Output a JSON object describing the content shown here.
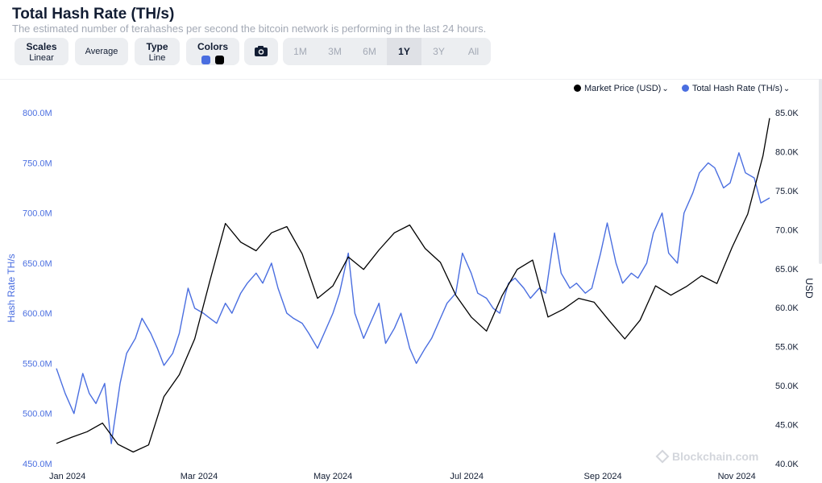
{
  "header": {
    "title": "Total Hash Rate (TH/s)",
    "subtitle": "The estimated number of terahashes per second the bitcoin network is performing in the last 24 hours."
  },
  "toolbar": {
    "scales_label": "Scales",
    "scales_value": "Linear",
    "average_label": "Average",
    "type_label": "Type",
    "type_value": "Line",
    "colors_label": "Colors",
    "color_hashrate": "#4a6ee0",
    "color_price": "#000000",
    "camera_icon": "camera-icon",
    "ranges": [
      "1M",
      "3M",
      "6M",
      "1Y",
      "3Y",
      "All"
    ],
    "active_range": "1Y"
  },
  "legend": {
    "price": "Market Price (USD)",
    "hashrate": "Total Hash Rate (TH/s)"
  },
  "watermark": "Blockchain.com",
  "chart_data": {
    "type": "line",
    "xlabel": "",
    "x_ticks": [
      "Jan 2024",
      "Mar 2024",
      "May 2024",
      "Jul 2024",
      "Sep 2024",
      "Nov 2024"
    ],
    "left_axis": {
      "label": "Hash Rate TH/s",
      "range": [
        450000000,
        800000000
      ],
      "ticks": [
        "450.0M",
        "500.0M",
        "550.0M",
        "600.0M",
        "650.0M",
        "700.0M",
        "750.0M",
        "800.0M"
      ],
      "color": "#4a6ee0"
    },
    "right_axis": {
      "label": "USD",
      "range": [
        40000,
        85000
      ],
      "ticks": [
        "40.0K",
        "45.0K",
        "50.0K",
        "55.0K",
        "60.0K",
        "65.0K",
        "70.0K",
        "75.0K",
        "80.0K",
        "85.0K"
      ],
      "color": "#121d33"
    },
    "legend_position": "top-right",
    "grid": false,
    "series": [
      {
        "name": "Total Hash Rate (TH/s)",
        "axis": "left",
        "color": "#4a6ee0",
        "x": [
          "2023-12-27",
          "2023-12-31",
          "2024-01-04",
          "2024-01-08",
          "2024-01-11",
          "2024-01-14",
          "2024-01-18",
          "2024-01-21",
          "2024-01-25",
          "2024-01-28",
          "2024-02-01",
          "2024-02-04",
          "2024-02-08",
          "2024-02-11",
          "2024-02-14",
          "2024-02-18",
          "2024-02-21",
          "2024-02-25",
          "2024-02-28",
          "2024-03-03",
          "2024-03-06",
          "2024-03-09",
          "2024-03-13",
          "2024-03-16",
          "2024-03-20",
          "2024-03-23",
          "2024-03-27",
          "2024-03-30",
          "2024-04-03",
          "2024-04-06",
          "2024-04-10",
          "2024-04-13",
          "2024-04-17",
          "2024-04-20",
          "2024-04-24",
          "2024-04-27",
          "2024-05-01",
          "2024-05-04",
          "2024-05-08",
          "2024-05-11",
          "2024-05-15",
          "2024-05-18",
          "2024-05-22",
          "2024-05-25",
          "2024-05-29",
          "2024-06-01",
          "2024-06-05",
          "2024-06-08",
          "2024-06-12",
          "2024-06-15",
          "2024-06-19",
          "2024-06-22",
          "2024-06-26",
          "2024-06-29",
          "2024-07-03",
          "2024-07-06",
          "2024-07-10",
          "2024-07-13",
          "2024-07-16",
          "2024-07-20",
          "2024-07-23",
          "2024-07-27",
          "2024-07-30",
          "2024-08-03",
          "2024-08-06",
          "2024-08-10",
          "2024-08-13",
          "2024-08-17",
          "2024-08-20",
          "2024-08-24",
          "2024-08-27",
          "2024-08-31",
          "2024-09-03",
          "2024-09-07",
          "2024-09-10",
          "2024-09-14",
          "2024-09-17",
          "2024-09-21",
          "2024-09-24",
          "2024-09-28",
          "2024-10-01",
          "2024-10-05",
          "2024-10-08",
          "2024-10-12",
          "2024-10-15",
          "2024-10-19",
          "2024-10-22",
          "2024-10-26",
          "2024-10-29",
          "2024-11-02",
          "2024-11-05",
          "2024-11-09",
          "2024-11-12",
          "2024-11-16"
        ],
        "values": [
          545000000,
          520000000,
          500000000,
          540000000,
          520000000,
          510000000,
          530000000,
          470000000,
          530000000,
          560000000,
          575000000,
          595000000,
          580000000,
          565000000,
          548000000,
          560000000,
          580000000,
          625000000,
          605000000,
          600000000,
          595000000,
          590000000,
          610000000,
          600000000,
          620000000,
          630000000,
          640000000,
          630000000,
          650000000,
          625000000,
          600000000,
          595000000,
          590000000,
          580000000,
          565000000,
          580000000,
          600000000,
          620000000,
          660000000,
          600000000,
          575000000,
          590000000,
          610000000,
          570000000,
          585000000,
          600000000,
          565000000,
          550000000,
          565000000,
          575000000,
          595000000,
          610000000,
          620000000,
          660000000,
          640000000,
          620000000,
          615000000,
          605000000,
          600000000,
          630000000,
          635000000,
          625000000,
          615000000,
          625000000,
          620000000,
          680000000,
          640000000,
          625000000,
          630000000,
          620000000,
          625000000,
          660000000,
          690000000,
          650000000,
          630000000,
          640000000,
          635000000,
          650000000,
          680000000,
          700000000,
          660000000,
          650000000,
          700000000,
          720000000,
          740000000,
          750000000,
          745000000,
          725000000,
          730000000,
          760000000,
          740000000,
          735000000,
          710000000,
          715000000
        ]
      },
      {
        "name": "Market Price (USD)",
        "axis": "right",
        "color": "#000000",
        "x": [
          "2023-12-27",
          "2024-01-03",
          "2024-01-10",
          "2024-01-17",
          "2024-01-24",
          "2024-01-31",
          "2024-02-07",
          "2024-02-14",
          "2024-02-21",
          "2024-02-28",
          "2024-03-06",
          "2024-03-13",
          "2024-03-20",
          "2024-03-27",
          "2024-04-03",
          "2024-04-10",
          "2024-04-17",
          "2024-04-24",
          "2024-05-01",
          "2024-05-08",
          "2024-05-15",
          "2024-05-22",
          "2024-05-29",
          "2024-06-05",
          "2024-06-12",
          "2024-06-19",
          "2024-06-26",
          "2024-07-03",
          "2024-07-10",
          "2024-07-17",
          "2024-07-24",
          "2024-07-31",
          "2024-08-07",
          "2024-08-14",
          "2024-08-21",
          "2024-08-28",
          "2024-09-04",
          "2024-09-11",
          "2024-09-18",
          "2024-09-25",
          "2024-10-02",
          "2024-10-09",
          "2024-10-16",
          "2024-10-23",
          "2024-10-30",
          "2024-11-06",
          "2024-11-13",
          "2024-11-16"
        ],
        "values": [
          42600,
          43400,
          44100,
          45200,
          42500,
          41500,
          42400,
          48600,
          51400,
          56000,
          63500,
          70800,
          68400,
          67300,
          69600,
          70400,
          66900,
          61200,
          62800,
          66500,
          64900,
          67400,
          69600,
          70600,
          67600,
          65800,
          61600,
          58800,
          57000,
          61500,
          64900,
          66100,
          58800,
          59800,
          61200,
          60700,
          58300,
          56000,
          58400,
          62800,
          61600,
          62700,
          64100,
          63100,
          67800,
          72000,
          79500,
          84300
        ]
      }
    ]
  }
}
